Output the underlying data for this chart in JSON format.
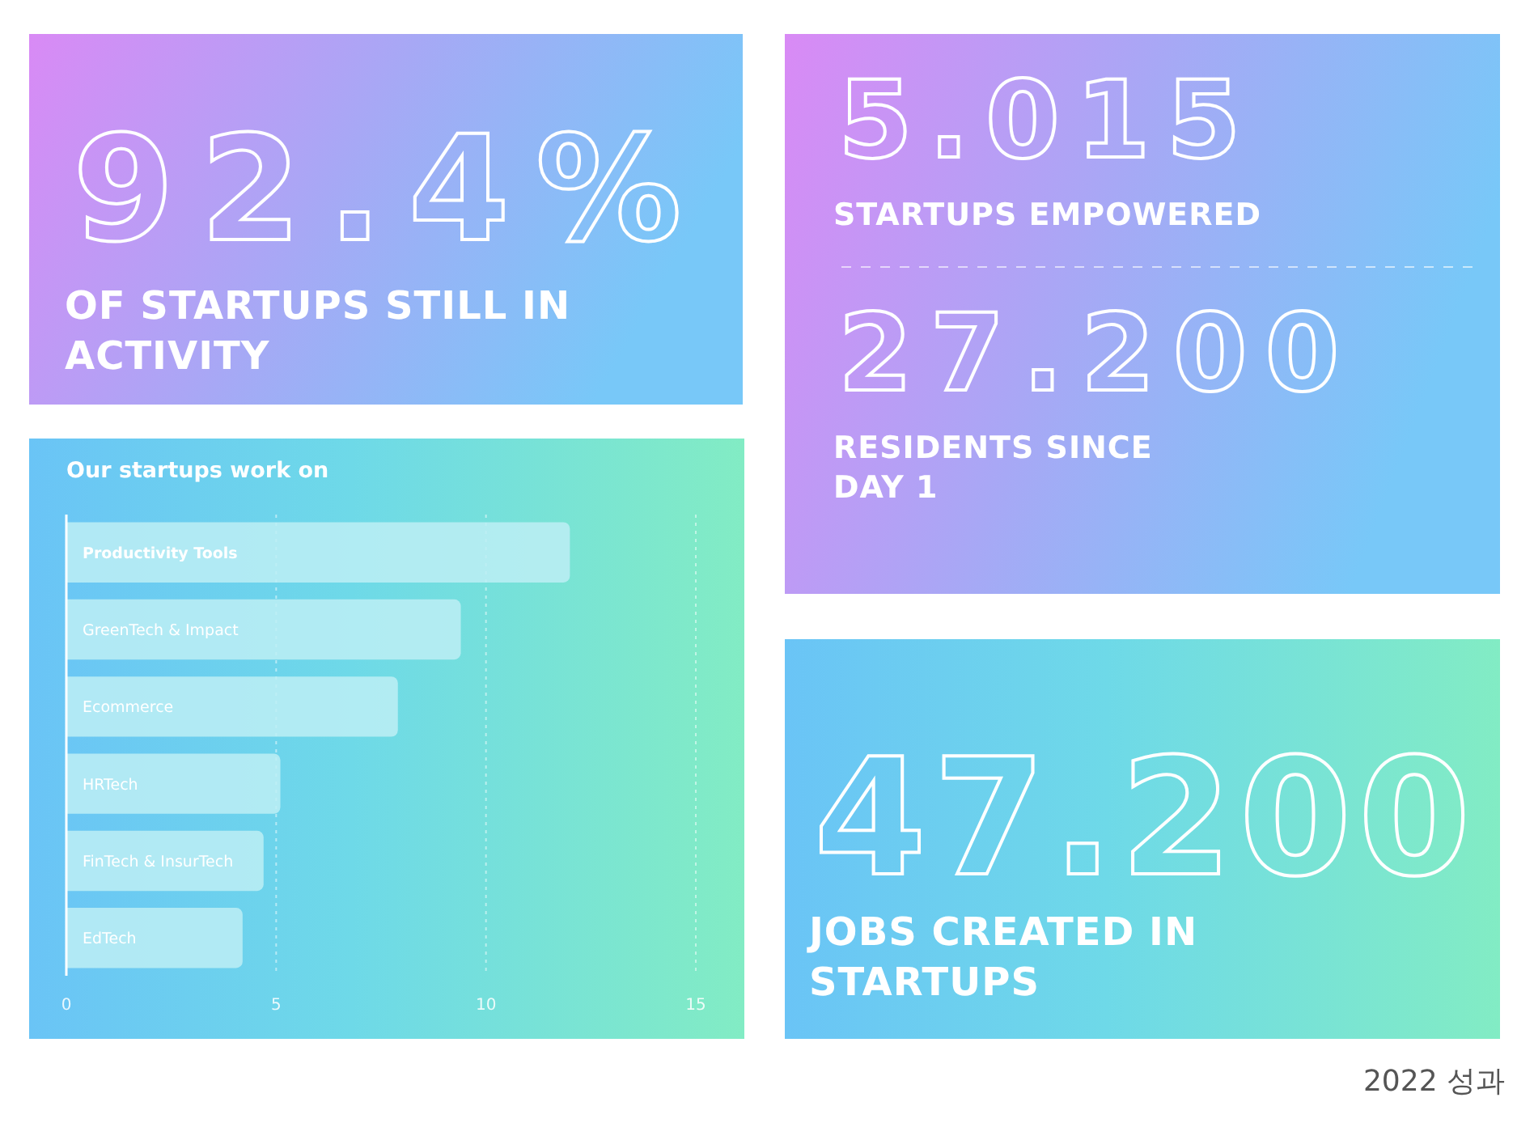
{
  "chart_data": [
    {
      "type": "other",
      "title": "92.4%",
      "subtitle": "OF STARTUPS STILL IN ACTIVITY"
    },
    {
      "type": "other",
      "annotations": [
        "5.015",
        "STARTUPS EMPOWERED",
        "27.200",
        "RESIDENTS SINCE DAY 1"
      ]
    },
    {
      "type": "bar",
      "orientation": "horizontal",
      "title": "Our startups work on",
      "categories": [
        "Productivity Tools",
        "GreenTech & Impact",
        "Ecommerce",
        "HRTech",
        "FinTech & InsurTech",
        "EdTech"
      ],
      "values": [
        12,
        9.4,
        7.9,
        5.1,
        4.7,
        4.2
      ],
      "color": "#bdeef4",
      "xlim": [
        0,
        15
      ],
      "xticks": [
        0,
        5,
        10,
        15
      ],
      "grid": "x"
    },
    {
      "type": "other",
      "title": "47.200",
      "subtitle": "JOBS CREATED IN STARTUPS",
      "annotations": [
        "2022 성과"
      ]
    }
  ]
}
